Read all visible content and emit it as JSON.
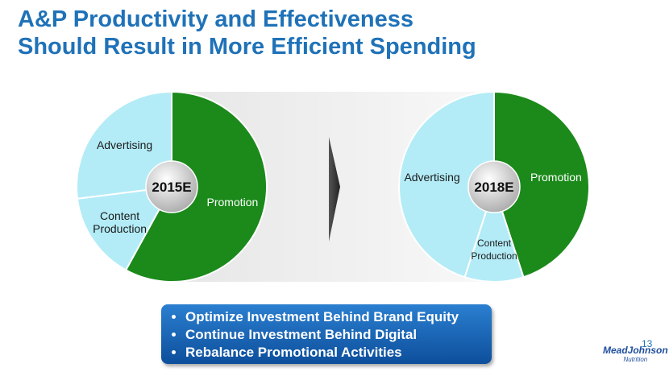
{
  "title": [
    "A&P Productivity and Effectiveness",
    "Should Result in More Efficient Spending"
  ],
  "chart_data": [
    {
      "type": "pie",
      "title": "2015E",
      "categories": [
        "Promotion",
        "Content Production",
        "Advertising"
      ],
      "values": [
        58,
        15,
        27
      ],
      "colors": [
        "#1b8a1b",
        "#b3ecf7",
        "#b3ecf7"
      ],
      "label_colors": [
        "#ffffff",
        "#1a1a1a",
        "#1a1a1a"
      ]
    },
    {
      "type": "pie",
      "title": "2018E",
      "categories": [
        "Promotion",
        "Content Production",
        "Advertising"
      ],
      "values": [
        45,
        10,
        45
      ],
      "colors": [
        "#1b8a1b",
        "#b3ecf7",
        "#b3ecf7"
      ],
      "label_colors": [
        "#ffffff",
        "#1a1a1a",
        "#1a1a1a"
      ]
    }
  ],
  "bullets": [
    "Optimize Investment Behind Brand Equity",
    "Continue Investment Behind Digital",
    "Rebalance Promotional Activities"
  ],
  "page_number": "13",
  "logo": [
    "MeadJohnson",
    "Nutrition"
  ]
}
